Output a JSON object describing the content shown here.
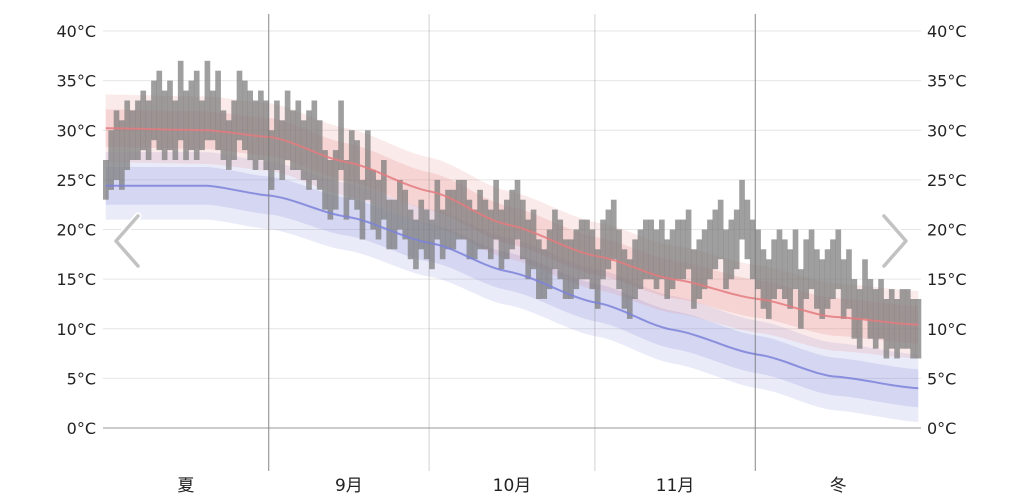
{
  "chart_data": {
    "type": "area",
    "title": "",
    "xlabel": "",
    "ylabel": "",
    "ylim": [
      0,
      40
    ],
    "y_ticks": [
      "0°C",
      "5°C",
      "10°C",
      "15°C",
      "20°C",
      "25°C",
      "30°C",
      "35°C",
      "40°C"
    ],
    "y_tick_values": [
      0,
      5,
      10,
      15,
      20,
      25,
      30,
      35,
      40
    ],
    "grid": true,
    "x_start_date": "08-01",
    "x_end_date": "12-31",
    "month_boundaries": [
      "09-01",
      "10-01",
      "11-01",
      "12-01"
    ],
    "period_labels": [
      "夏",
      "9月",
      "10月",
      "11月",
      "冬"
    ],
    "normal_high_anchors": [
      {
        "date": "08-01",
        "value": 30.2
      },
      {
        "date": "08-20",
        "value": 30.0
      },
      {
        "date": "09-01",
        "value": 29.3
      },
      {
        "date": "09-15",
        "value": 26.8
      },
      {
        "date": "10-01",
        "value": 23.8
      },
      {
        "date": "10-15",
        "value": 20.5
      },
      {
        "date": "11-01",
        "value": 17.3
      },
      {
        "date": "11-15",
        "value": 15.0
      },
      {
        "date": "12-01",
        "value": 13.0
      },
      {
        "date": "12-15",
        "value": 11.2
      },
      {
        "date": "12-31",
        "value": 10.4
      }
    ],
    "normal_low_anchors": [
      {
        "date": "08-01",
        "value": 24.4
      },
      {
        "date": "08-20",
        "value": 24.4
      },
      {
        "date": "09-01",
        "value": 23.4
      },
      {
        "date": "09-15",
        "value": 21.3
      },
      {
        "date": "10-01",
        "value": 18.6
      },
      {
        "date": "10-15",
        "value": 15.8
      },
      {
        "date": "11-01",
        "value": 12.6
      },
      {
        "date": "11-15",
        "value": 9.9
      },
      {
        "date": "12-01",
        "value": 7.4
      },
      {
        "date": "12-15",
        "value": 5.2
      },
      {
        "date": "12-31",
        "value": 4.0
      }
    ],
    "colors": {
      "high": "#e47b7f",
      "low": "#7d82d9",
      "daily_bar": "#7a7a7a",
      "grid": "#e6e6e6",
      "month_line": "#7a7a7a"
    },
    "daily_highs": [
      27,
      30,
      32,
      31,
      33,
      32,
      33,
      34,
      33,
      35,
      36,
      34,
      35,
      33,
      37,
      34,
      35,
      36,
      33,
      37,
      34,
      36,
      32,
      31,
      33,
      36,
      35,
      34,
      33,
      34,
      33,
      30,
      33,
      31,
      34,
      32,
      33,
      31,
      32,
      33,
      31,
      28,
      27,
      28,
      33,
      27,
      30,
      29,
      25,
      30,
      26,
      25,
      27,
      23,
      23,
      25,
      24,
      22,
      21,
      23,
      22,
      21,
      25,
      22,
      24,
      24,
      25,
      25,
      23,
      22,
      24,
      23,
      22,
      25,
      22,
      23,
      24,
      25,
      23,
      21,
      22,
      19,
      18,
      20,
      22,
      21,
      19,
      19,
      20,
      21,
      21,
      20,
      18,
      21,
      22,
      23,
      20,
      18,
      17,
      19,
      20,
      21,
      21,
      20,
      21,
      19,
      20,
      21,
      21,
      22,
      18,
      19,
      20,
      21,
      22,
      23,
      20,
      21,
      22,
      25,
      23,
      21,
      20,
      18,
      17,
      19,
      20,
      19,
      18,
      20,
      16,
      19,
      20,
      18,
      17,
      18,
      19,
      20,
      17,
      18,
      15,
      14,
      17,
      15,
      14,
      15,
      13,
      14,
      13,
      14,
      14,
      13,
      13,
      12,
      14,
      15,
      13,
      15,
      13,
      14,
      13,
      13,
      15,
      14,
      15,
      13,
      16
    ],
    "daily_lows": [
      23,
      24,
      25,
      24,
      26,
      27,
      27,
      28,
      27,
      29,
      28,
      27,
      28,
      27,
      29,
      27,
      28,
      27,
      28,
      29,
      29,
      28,
      27,
      26,
      27,
      29,
      28,
      27,
      26,
      27,
      26,
      24,
      26,
      25,
      27,
      26,
      26,
      25,
      24,
      25,
      24,
      22,
      21,
      22,
      26,
      21,
      23,
      22,
      19,
      23,
      20,
      19,
      21,
      18,
      18,
      20,
      19,
      17,
      16,
      18,
      17,
      16,
      19,
      17,
      18,
      18,
      19,
      19,
      17,
      17,
      18,
      18,
      17,
      19,
      16,
      17,
      18,
      19,
      17,
      15,
      16,
      13,
      13,
      14,
      16,
      15,
      13,
      13,
      14,
      15,
      15,
      14,
      12,
      15,
      16,
      17,
      14,
      12,
      11,
      13,
      14,
      15,
      15,
      14,
      15,
      13,
      14,
      15,
      15,
      16,
      12,
      13,
      14,
      15,
      16,
      17,
      14,
      15,
      16,
      19,
      17,
      15,
      14,
      12,
      11,
      13,
      14,
      13,
      12,
      14,
      10,
      13,
      14,
      12,
      11,
      12,
      13,
      14,
      11,
      12,
      9,
      8,
      11,
      9,
      8,
      9,
      7,
      8,
      7,
      8,
      8,
      7,
      7,
      6,
      8,
      9,
      7,
      9,
      7,
      8,
      7,
      7,
      9,
      8,
      9,
      7,
      10
    ]
  },
  "navigation": {
    "prev_icon": "chevron-left-icon",
    "next_icon": "chevron-right-icon"
  }
}
